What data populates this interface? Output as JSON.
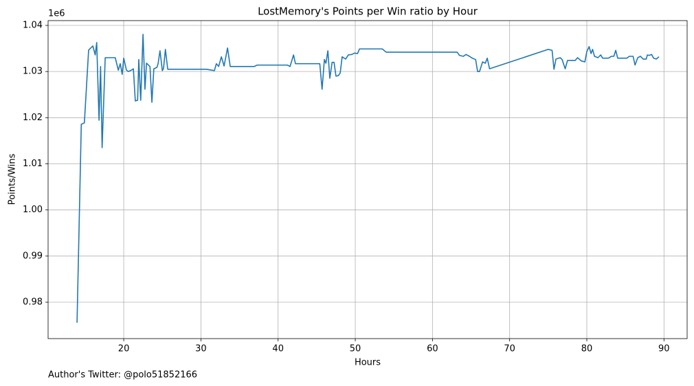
{
  "chart_data": {
    "type": "line",
    "title": "LostMemory's Points per Win ratio by Hour",
    "x_label": "Hours",
    "y_label": "Points/Wins",
    "y_offset_label": "1e6",
    "footer": "Author's Twitter: @polo51852166",
    "color": "#1f77b4",
    "grid": true,
    "xlim": [
      10.2,
      93.0
    ],
    "ylim": [
      972110,
      1041040
    ],
    "xticks": [
      20,
      30,
      40,
      50,
      60,
      70,
      80,
      90
    ],
    "yticks": [
      {
        "value": 980000,
        "label": "0.98"
      },
      {
        "value": 990000,
        "label": "0.99"
      },
      {
        "value": 1000000,
        "label": "1.00"
      },
      {
        "value": 1010000,
        "label": "1.01"
      },
      {
        "value": 1020000,
        "label": "1.02"
      },
      {
        "value": 1030000,
        "label": "1.03"
      },
      {
        "value": 1040000,
        "label": "1.04"
      }
    ],
    "x": [
      13.95,
      14.5,
      14.9,
      15.45,
      16.0,
      16.3,
      16.5,
      16.8,
      17.0,
      17.2,
      17.6,
      18.9,
      19.3,
      19.55,
      19.8,
      20.0,
      20.35,
      20.6,
      21.0,
      21.25,
      21.5,
      21.8,
      21.95,
      22.2,
      22.5,
      22.75,
      22.95,
      23.4,
      23.65,
      23.9,
      24.3,
      24.45,
      24.7,
      25.0,
      25.15,
      25.4,
      25.7,
      30.7,
      31.75,
      32.0,
      32.3,
      32.65,
      33.0,
      33.45,
      33.8,
      36.9,
      37.3,
      41.2,
      41.55,
      42.0,
      42.25,
      45.4,
      45.7,
      46.0,
      46.2,
      46.45,
      46.7,
      47.0,
      47.25,
      47.5,
      47.8,
      48.05,
      48.3,
      48.75,
      49.1,
      49.55,
      49.9,
      50.3,
      50.55,
      53.5,
      54.0,
      63.2,
      63.5,
      64.0,
      64.35,
      64.8,
      65.15,
      65.6,
      65.85,
      66.1,
      66.5,
      66.85,
      67.1,
      67.4,
      75.0,
      75.5,
      75.75,
      76.0,
      76.55,
      76.8,
      77.2,
      77.5,
      78.5,
      78.8,
      79.3,
      79.75,
      80.0,
      80.3,
      80.55,
      80.75,
      81.0,
      81.45,
      81.8,
      82.05,
      82.8,
      83.2,
      83.5,
      83.75,
      84.0,
      85.2,
      85.5,
      86.0,
      86.25,
      86.6,
      86.95,
      87.3,
      87.7,
      87.85,
      88.1,
      88.4,
      88.65,
      89.0,
      89.35
    ],
    "values": [
      975560,
      1018570,
      1018870,
      1034640,
      1035540,
      1033600,
      1036280,
      1019460,
      1031100,
      1013510,
      1033000,
      1033000,
      1030300,
      1031700,
      1029400,
      1032900,
      1030300,
      1030000,
      1030300,
      1030600,
      1023630,
      1023780,
      1032600,
      1023780,
      1038070,
      1026160,
      1031820,
      1031070,
      1023330,
      1030600,
      1030900,
      1031700,
      1034500,
      1030200,
      1030600,
      1034800,
      1030500,
      1030500,
      1030200,
      1031700,
      1031100,
      1033200,
      1031200,
      1035100,
      1031100,
      1031100,
      1031400,
      1031400,
      1031100,
      1033600,
      1031700,
      1031700,
      1026160,
      1032600,
      1031800,
      1034500,
      1028540,
      1032000,
      1032000,
      1029000,
      1029100,
      1029700,
      1033200,
      1032700,
      1033600,
      1033700,
      1034000,
      1033900,
      1034900,
      1034900,
      1034200,
      1034200,
      1033500,
      1033300,
      1033700,
      1033300,
      1032900,
      1032600,
      1030000,
      1030000,
      1032100,
      1031800,
      1032900,
      1030600,
      1034800,
      1034600,
      1030500,
      1032700,
      1033000,
      1032600,
      1030600,
      1032400,
      1032400,
      1033000,
      1032300,
      1032100,
      1034300,
      1035400,
      1033900,
      1034800,
      1033300,
      1033000,
      1033600,
      1032900,
      1032900,
      1033300,
      1033300,
      1034600,
      1032900,
      1032900,
      1033300,
      1033300,
      1031400,
      1033000,
      1033300,
      1032700,
      1032700,
      1033600,
      1033500,
      1033700,
      1032900,
      1032700,
      1033200
    ]
  }
}
